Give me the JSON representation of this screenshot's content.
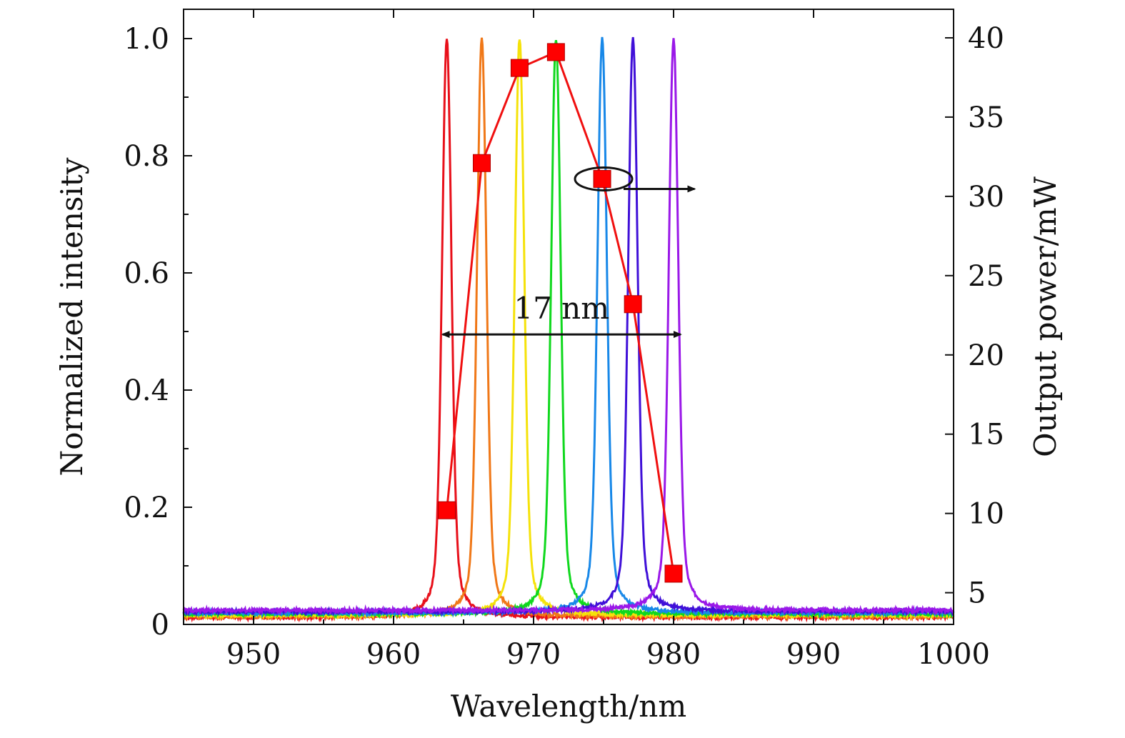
{
  "chart_data": {
    "type": "line",
    "xlabel": "Wavelength/nm",
    "ylabel": "Normalized intensity",
    "y2label": "Output power/mW",
    "xlim": [
      945,
      1000
    ],
    "ylim": [
      0,
      1.05
    ],
    "y2lim": [
      3,
      41.8
    ],
    "x_ticks": [
      950,
      960,
      970,
      980,
      990,
      1000
    ],
    "x_tick_labels": [
      "950",
      "960",
      "970",
      "980",
      "990",
      "1000"
    ],
    "y_ticks": [
      0,
      0.2,
      0.4,
      0.6,
      0.8,
      1.0
    ],
    "y_tick_labels": [
      "0",
      "0.2",
      "0.4",
      "0.6",
      "0.8",
      "1.0"
    ],
    "y2_ticks": [
      5,
      10,
      15,
      20,
      25,
      30,
      35,
      40
    ],
    "y2_tick_labels": [
      "5",
      "10",
      "15",
      "20",
      "25",
      "30",
      "35",
      "40"
    ],
    "grid": false,
    "spectra": [
      {
        "center": 963.8,
        "color": "#e8101a"
      },
      {
        "center": 966.3,
        "color": "#f07818"
      },
      {
        "center": 969.0,
        "color": "#f5e20a"
      },
      {
        "center": 971.6,
        "color": "#10d81e"
      },
      {
        "center": 974.9,
        "color": "#1888e8"
      },
      {
        "center": 977.1,
        "color": "#4010d8"
      },
      {
        "center": 980.0,
        "color": "#9a18e8"
      }
    ],
    "output_power": {
      "x": [
        963.8,
        966.3,
        969.0,
        971.6,
        974.9,
        977.1,
        980.0
      ],
      "y": [
        10.2,
        32.1,
        38.1,
        39.1,
        31.1,
        23.2,
        6.2
      ],
      "color": "#ff0000"
    },
    "annotation": {
      "text": "17 nm",
      "arrow_from": 963.5,
      "arrow_to": 980.5,
      "arrow_y": 0.495
    },
    "axis_indicator": {
      "ellipse_center_x": 975.0,
      "ellipse_center_y2": 31.1,
      "arrow_to_x": 981.5
    }
  }
}
